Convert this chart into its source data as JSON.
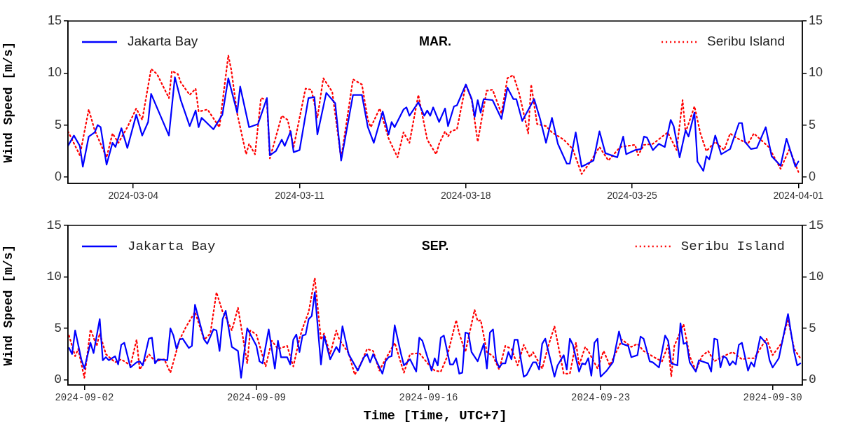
{
  "chart_data": [
    {
      "type": "line",
      "title": "MAR.",
      "ylabel": "Wind Speed [m/s]",
      "legend": "top",
      "grid": false,
      "marker": "none",
      "xlim": [
        "2024-03-01T06:00",
        "2024-04-01T04:00"
      ],
      "xticks": [
        "2024-03-04",
        "2024-03-11",
        "2024-03-18",
        "2024-03-25",
        "2024-04-01"
      ],
      "ylim": [
        -0.6,
        15
      ],
      "yticks": [
        0,
        5,
        10,
        15
      ],
      "y2lim": [
        -0.6,
        15
      ],
      "y2ticks": [
        0,
        5,
        10,
        15
      ],
      "series": [
        {
          "name": "Jakarta Bay",
          "color": "#0000ff",
          "line_style": "solid",
          "x": [
            "2024-03-01T06:00",
            "2024-03-01T12:00",
            "2024-03-01T18:00",
            "2024-03-01T21:00",
            "2024-03-02T03:00",
            "2024-03-02T09:00",
            "2024-03-02T12:00",
            "2024-03-02T15:00",
            "2024-03-02T21:00",
            "2024-03-03T03:00",
            "2024-03-03T06:00",
            "2024-03-03T12:00",
            "2024-03-03T18:00",
            "2024-03-04T03:00",
            "2024-03-04T09:00",
            "2024-03-04T15:00",
            "2024-03-04T18:00",
            "2024-03-05T03:00",
            "2024-03-05T12:00",
            "2024-03-05T18:00",
            "2024-03-06T00:00",
            "2024-03-06T09:00",
            "2024-03-06T15:00",
            "2024-03-06T18:00",
            "2024-03-06T21:00",
            "2024-03-07T09:00",
            "2024-03-07T18:00",
            "2024-03-08T00:00",
            "2024-03-08T09:00",
            "2024-03-08T12:00",
            "2024-03-08T21:00",
            "2024-03-09T06:00",
            "2024-03-09T15:00",
            "2024-03-09T18:00",
            "2024-03-10T00:00",
            "2024-03-10T06:00",
            "2024-03-10T09:00",
            "2024-03-10T15:00",
            "2024-03-10T18:00",
            "2024-03-11T00:00",
            "2024-03-11T09:00",
            "2024-03-11T15:00",
            "2024-03-11T18:00",
            "2024-03-12T03:00",
            "2024-03-12T12:00",
            "2024-03-12T18:00",
            "2024-03-13T06:00",
            "2024-03-13T15:00",
            "2024-03-13T21:00",
            "2024-03-14T03:00",
            "2024-03-14T12:00",
            "2024-03-14T18:00",
            "2024-03-14T21:00",
            "2024-03-15T00:00",
            "2024-03-15T09:00",
            "2024-03-15T12:00",
            "2024-03-15T15:00",
            "2024-03-16T00:00",
            "2024-03-16T06:00",
            "2024-03-16T09:00",
            "2024-03-16T12:00",
            "2024-03-16T15:00",
            "2024-03-16T21:00",
            "2024-03-17T03:00",
            "2024-03-17T06:00",
            "2024-03-17T12:00",
            "2024-03-17T15:00",
            "2024-03-18T00:00",
            "2024-03-18T06:00",
            "2024-03-18T09:00",
            "2024-03-18T12:00",
            "2024-03-18T15:00",
            "2024-03-18T18:00",
            "2024-03-19T03:00",
            "2024-03-19T12:00",
            "2024-03-19T18:00",
            "2024-03-20T00:00",
            "2024-03-20T03:00",
            "2024-03-20T09:00",
            "2024-03-20T21:00",
            "2024-03-21T03:00",
            "2024-03-21T09:00",
            "2024-03-21T15:00",
            "2024-03-21T21:00",
            "2024-03-22T06:00",
            "2024-03-22T09:00",
            "2024-03-22T15:00",
            "2024-03-22T21:00",
            "2024-03-23T09:00",
            "2024-03-23T15:00",
            "2024-03-23T21:00",
            "2024-03-24T09:00",
            "2024-03-24T15:00",
            "2024-03-24T18:00",
            "2024-03-25T03:00",
            "2024-03-25T09:00",
            "2024-03-25T12:00",
            "2024-03-25T15:00",
            "2024-03-25T21:00",
            "2024-03-26T03:00",
            "2024-03-26T09:00",
            "2024-03-26T15:00",
            "2024-03-26T18:00",
            "2024-03-27T00:00",
            "2024-03-27T06:00",
            "2024-03-27T09:00",
            "2024-03-27T15:00",
            "2024-03-27T18:00",
            "2024-03-28T00:00",
            "2024-03-28T03:00",
            "2024-03-28T06:00",
            "2024-03-28T12:00",
            "2024-03-28T18:00",
            "2024-03-29T03:00",
            "2024-03-29T12:00",
            "2024-03-29T15:00",
            "2024-03-29T18:00",
            "2024-03-30T00:00",
            "2024-03-30T06:00",
            "2024-03-30T15:00",
            "2024-03-30T21:00",
            "2024-03-31T06:00",
            "2024-03-31T12:00",
            "2024-03-31T21:00",
            "2024-04-01T00:00"
          ],
          "values": [
            3.0,
            4.0,
            3.0,
            1.0,
            3.9,
            4.3,
            5.0,
            4.8,
            1.2,
            3.3,
            2.9,
            4.7,
            2.8,
            6.0,
            4.0,
            5.3,
            8.0,
            6.0,
            4.0,
            9.6,
            7.4,
            4.9,
            6.4,
            4.8,
            5.7,
            4.6,
            6.0,
            9.5,
            6.2,
            8.7,
            4.8,
            5.1,
            7.6,
            2.1,
            2.5,
            3.6,
            3.0,
            4.4,
            2.4,
            2.6,
            7.6,
            7.7,
            4.1,
            8.1,
            7.1,
            1.6,
            7.9,
            7.9,
            4.8,
            3.3,
            6.3,
            4.1,
            5.3,
            4.8,
            6.5,
            6.7,
            5.9,
            7.2,
            5.9,
            6.4,
            5.9,
            6.7,
            5.3,
            6.6,
            4.9,
            6.8,
            6.9,
            8.9,
            7.5,
            5.8,
            7.4,
            6.2,
            7.5,
            7.4,
            5.6,
            8.6,
            7.5,
            7.5,
            5.4,
            7.5,
            5.6,
            3.3,
            5.7,
            3.2,
            1.3,
            1.3,
            4.3,
            1.0,
            1.6,
            4.4,
            2.3,
            1.9,
            3.9,
            2.2,
            2.6,
            2.7,
            3.9,
            3.8,
            2.6,
            3.2,
            2.9,
            5.5,
            4.9,
            1.9,
            4.5,
            3.9,
            6.2,
            1.5,
            0.6,
            2.0,
            1.7,
            4.0,
            2.2,
            2.7,
            5.2,
            5.2,
            3.4,
            2.7,
            2.8,
            4.8,
            2.0,
            1.1,
            3.7,
            1.0,
            1.5
          ]
        },
        {
          "name": "Seribu Island",
          "color": "#ff0000",
          "line_style": "dotted",
          "x": [
            "2024-03-01T06:00",
            "2024-03-01T18:00",
            "2024-03-02T03:00",
            "2024-03-02T09:00",
            "2024-03-02T21:00",
            "2024-03-03T03:00",
            "2024-03-03T09:00",
            "2024-03-03T18:00",
            "2024-03-04T03:00",
            "2024-03-04T09:00",
            "2024-03-04T18:00",
            "2024-03-05T00:00",
            "2024-03-05T12:00",
            "2024-03-05T15:00",
            "2024-03-05T21:00",
            "2024-03-06T00:00",
            "2024-03-06T09:00",
            "2024-03-06T15:00",
            "2024-03-06T18:00",
            "2024-03-07T03:00",
            "2024-03-07T15:00",
            "2024-03-08T00:00",
            "2024-03-08T03:00",
            "2024-03-08T09:00",
            "2024-03-08T18:00",
            "2024-03-08T21:00",
            "2024-03-09T03:00",
            "2024-03-09T09:00",
            "2024-03-09T15:00",
            "2024-03-09T18:00",
            "2024-03-10T06:00",
            "2024-03-10T12:00",
            "2024-03-10T18:00",
            "2024-03-11T06:00",
            "2024-03-11T12:00",
            "2024-03-11T18:00",
            "2024-03-12T00:00",
            "2024-03-12T09:00",
            "2024-03-12T18:00",
            "2024-03-13T06:00",
            "2024-03-13T15:00",
            "2024-03-13T21:00",
            "2024-03-14T00:00",
            "2024-03-14T09:00",
            "2024-03-14T18:00",
            "2024-03-15T03:00",
            "2024-03-15T09:00",
            "2024-03-15T15:00",
            "2024-03-16T00:00",
            "2024-03-16T09:00",
            "2024-03-16T18:00",
            "2024-03-16T21:00",
            "2024-03-17T03:00",
            "2024-03-17T06:00",
            "2024-03-17T09:00",
            "2024-03-17T15:00",
            "2024-03-18T00:00",
            "2024-03-18T06:00",
            "2024-03-18T12:00",
            "2024-03-18T21:00",
            "2024-03-19T03:00",
            "2024-03-19T12:00",
            "2024-03-19T18:00",
            "2024-03-20T00:00",
            "2024-03-20T06:00",
            "2024-03-20T15:00",
            "2024-03-20T18:00",
            "2024-03-21T00:00",
            "2024-03-21T09:00",
            "2024-03-21T15:00",
            "2024-03-22T03:00",
            "2024-03-22T12:00",
            "2024-03-22T21:00",
            "2024-03-23T06:00",
            "2024-03-23T15:00",
            "2024-03-24T00:00",
            "2024-03-24T12:00",
            "2024-03-25T03:00",
            "2024-03-25T06:00",
            "2024-03-25T12:00",
            "2024-03-25T21:00",
            "2024-03-26T12:00",
            "2024-03-26T21:00",
            "2024-03-27T03:00",
            "2024-03-27T06:00",
            "2024-03-27T15:00",
            "2024-03-27T21:00",
            "2024-03-28T03:00",
            "2024-03-28T12:00",
            "2024-03-28T21:00",
            "2024-03-29T03:00",
            "2024-03-29T09:00",
            "2024-03-29T21:00",
            "2024-03-30T03:00",
            "2024-03-30T18:00",
            "2024-03-31T06:00",
            "2024-03-31T15:00",
            "2024-04-01T00:00"
          ],
          "values": [
            4.4,
            2.1,
            6.5,
            4.5,
            1.9,
            4.2,
            3.3,
            4.8,
            6.6,
            5.5,
            10.4,
            9.9,
            7.6,
            10.2,
            9.9,
            9.1,
            7.9,
            8.5,
            6.3,
            6.5,
            4.8,
            11.7,
            10.3,
            6.1,
            2.2,
            3.2,
            2.2,
            7.6,
            7.4,
            1.8,
            5.9,
            5.5,
            2.9,
            8.5,
            8.4,
            5.7,
            9.5,
            8.2,
            1.8,
            9.4,
            8.9,
            5.5,
            4.8,
            6.6,
            3.7,
            1.9,
            4.3,
            3.3,
            7.9,
            3.6,
            2.2,
            3.2,
            4.4,
            3.9,
            4.4,
            4.6,
            8.9,
            7.4,
            3.4,
            8.3,
            8.4,
            6.1,
            9.5,
            9.8,
            8.0,
            4.2,
            8.9,
            5.1,
            4.9,
            4.3,
            3.6,
            2.7,
            0.3,
            1.5,
            2.9,
            1.6,
            2.9,
            3.1,
            2.1,
            3.1,
            3.2,
            4.3,
            2.6,
            7.4,
            4.3,
            6.8,
            4.2,
            2.5,
            3.4,
            2.6,
            4.2,
            3.8,
            3.2,
            4.2,
            2.9,
            0.8,
            2.7,
            0.5
          ]
        }
      ]
    },
    {
      "type": "line",
      "title": "SEP.",
      "ylabel": "Wind Speed [m/s]",
      "xlabel": "Time [Time, UTC+7]",
      "legend": "top",
      "grid": false,
      "marker": "none",
      "xlim": [
        "2024-09-01T08:00",
        "2024-10-01T05:00"
      ],
      "xticks": [
        "2024-09-02",
        "2024-09-09",
        "2024-09-16",
        "2024-09-23",
        "2024-09-30"
      ],
      "ylim": [
        -0.5,
        15
      ],
      "yticks": [
        0,
        5,
        10,
        15
      ],
      "y2lim": [
        -0.5,
        15
      ],
      "y2ticks": [
        0,
        5,
        10,
        15
      ],
      "series": [
        {
          "name": "Jakarta Bay",
          "color": "#0000ff",
          "line_style": "solid",
          "x": [
            "2024-09-01T09:00",
            "2024-09-01T12:00",
            "2024-09-01T15:00",
            "2024-09-01T21:00",
            "2024-09-02T00:00",
            "2024-09-02T06:00",
            "2024-09-02T09:00",
            "2024-09-02T15:00",
            "2024-09-02T18:00",
            "2024-09-02T21:00",
            "2024-09-03T00:00",
            "2024-09-03T06:00",
            "2024-09-03T09:00",
            "2024-09-03T12:00",
            "2024-09-03T15:00",
            "2024-09-03T21:00",
            "2024-09-04T03:00",
            "2024-09-04T06:00",
            "2024-09-04T09:00",
            "2024-09-04T15:00",
            "2024-09-04T18:00",
            "2024-09-04T21:00",
            "2024-09-05T00:00",
            "2024-09-05T09:00",
            "2024-09-05T12:00",
            "2024-09-05T15:00",
            "2024-09-05T18:00",
            "2024-09-05T21:00",
            "2024-09-06T00:00",
            "2024-09-06T06:00",
            "2024-09-06T09:00",
            "2024-09-06T12:00",
            "2024-09-06T21:00",
            "2024-09-07T00:00",
            "2024-09-07T06:00",
            "2024-09-07T09:00",
            "2024-09-07T12:00",
            "2024-09-07T15:00",
            "2024-09-07T18:00",
            "2024-09-08T00:00",
            "2024-09-08T03:00",
            "2024-09-08T06:00",
            "2024-09-08T09:00",
            "2024-09-08T15:00",
            "2024-09-09T00:00",
            "2024-09-09T03:00",
            "2024-09-09T06:00",
            "2024-09-09T12:00",
            "2024-09-09T18:00",
            "2024-09-09T21:00",
            "2024-09-10T00:00",
            "2024-09-10T06:00",
            "2024-09-10T09:00",
            "2024-09-10T12:00",
            "2024-09-10T15:00",
            "2024-09-10T18:00",
            "2024-09-10T21:00",
            "2024-09-11T00:00",
            "2024-09-11T03:00",
            "2024-09-11T06:00",
            "2024-09-11T09:00",
            "2024-09-11T15:00",
            "2024-09-11T18:00",
            "2024-09-12T00:00",
            "2024-09-12T06:00",
            "2024-09-12T09:00",
            "2024-09-12T12:00",
            "2024-09-12T18:00",
            "2024-09-13T03:00",
            "2024-09-13T09:00",
            "2024-09-13T12:00",
            "2024-09-13T15:00",
            "2024-09-13T18:00",
            "2024-09-14T03:00",
            "2024-09-14T06:00",
            "2024-09-14T09:00",
            "2024-09-14T12:00",
            "2024-09-14T15:00",
            "2024-09-14T21:00",
            "2024-09-15T00:00",
            "2024-09-15T06:00",
            "2024-09-15T12:00",
            "2024-09-15T15:00",
            "2024-09-15T18:00",
            "2024-09-16T03:00",
            "2024-09-16T06:00",
            "2024-09-16T09:00",
            "2024-09-16T12:00",
            "2024-09-16T15:00",
            "2024-09-16T21:00",
            "2024-09-17T00:00",
            "2024-09-17T03:00",
            "2024-09-17T06:00",
            "2024-09-17T09:00",
            "2024-09-17T12:00",
            "2024-09-17T15:00",
            "2024-09-17T18:00",
            "2024-09-18T00:00",
            "2024-09-18T06:00",
            "2024-09-18T09:00",
            "2024-09-18T12:00",
            "2024-09-18T15:00",
            "2024-09-18T18:00",
            "2024-09-18T21:00",
            "2024-09-19T00:00",
            "2024-09-19T03:00",
            "2024-09-19T06:00",
            "2024-09-19T09:00",
            "2024-09-19T12:00",
            "2024-09-19T15:00",
            "2024-09-19T21:00",
            "2024-09-20T00:00",
            "2024-09-20T06:00",
            "2024-09-20T09:00",
            "2024-09-20T12:00",
            "2024-09-20T15:00",
            "2024-09-20T18:00",
            "2024-09-21T03:00",
            "2024-09-21T06:00",
            "2024-09-21T12:00",
            "2024-09-21T15:00",
            "2024-09-21T18:00",
            "2024-09-21T21:00",
            "2024-09-22T03:00",
            "2024-09-22T06:00",
            "2024-09-22T09:00",
            "2024-09-22T12:00",
            "2024-09-22T15:00",
            "2024-09-22T18:00",
            "2024-09-22T21:00",
            "2024-09-23T00:00",
            "2024-09-23T06:00",
            "2024-09-23T12:00",
            "2024-09-23T18:00",
            "2024-09-23T21:00",
            "2024-09-24T03:00",
            "2024-09-24T06:00",
            "2024-09-24T12:00",
            "2024-09-24T15:00",
            "2024-09-24T18:00",
            "2024-09-25T00:00",
            "2024-09-25T03:00",
            "2024-09-25T09:00",
            "2024-09-25T15:00",
            "2024-09-25T18:00",
            "2024-09-25T21:00",
            "2024-09-26T00:00",
            "2024-09-26T03:00",
            "2024-09-26T06:00",
            "2024-09-26T09:00",
            "2024-09-26T12:00",
            "2024-09-26T15:00",
            "2024-09-26T21:00",
            "2024-09-27T00:00",
            "2024-09-27T09:00",
            "2024-09-27T12:00",
            "2024-09-27T15:00",
            "2024-09-27T18:00",
            "2024-09-27T21:00",
            "2024-09-28T00:00",
            "2024-09-28T03:00",
            "2024-09-28T06:00",
            "2024-09-28T09:00",
            "2024-09-28T12:00",
            "2024-09-28T15:00",
            "2024-09-28T18:00",
            "2024-09-29T00:00",
            "2024-09-29T03:00",
            "2024-09-29T06:00",
            "2024-09-29T12:00",
            "2024-09-29T18:00",
            "2024-09-29T21:00",
            "2024-09-30T00:00",
            "2024-09-30T06:00",
            "2024-09-30T15:00",
            "2024-09-30T21:00",
            "2024-10-01T00:00",
            "2024-10-01T03:00"
          ],
          "values": [
            3.1,
            2.5,
            4.8,
            2.0,
            1.1,
            3.6,
            2.6,
            5.9,
            1.9,
            2.2,
            1.9,
            2.3,
            1.5,
            3.4,
            3.6,
            1.2,
            1.7,
            1.8,
            1.4,
            4.0,
            4.1,
            1.6,
            2.0,
            1.9,
            5.0,
            4.3,
            3.0,
            3.9,
            4.0,
            3.1,
            3.3,
            7.3,
            3.9,
            3.5,
            4.9,
            4.8,
            2.8,
            5.9,
            6.7,
            3.2,
            3.0,
            2.8,
            0.2,
            5.0,
            3.3,
            1.8,
            1.6,
            4.9,
            1.1,
            3.8,
            2.2,
            2.2,
            1.5,
            3.9,
            4.4,
            2.7,
            4.3,
            4.4,
            5.9,
            6.2,
            8.5,
            1.5,
            4.3,
            2.0,
            3.2,
            2.7,
            5.2,
            2.5,
            0.9,
            2.2,
            2.5,
            1.7,
            2.5,
            0.6,
            1.8,
            2.2,
            2.3,
            5.3,
            2.6,
            1.4,
            2.0,
            0.8,
            4.1,
            3.8,
            0.9,
            2.1,
            1.4,
            4.1,
            4.3,
            1.5,
            1.5,
            2.1,
            0.6,
            0.7,
            4.6,
            4.5,
            2.7,
            1.8,
            3.5,
            1.1,
            4.6,
            4.9,
            1.9,
            1.2,
            1.6,
            1.6,
            2.7,
            2.0,
            3.9,
            3.9,
            0.3,
            0.5,
            1.7,
            1.7,
            1.0,
            3.5,
            4.0,
            0.3,
            1.4,
            2.4,
            1.0,
            4.0,
            3.4,
            0.8,
            1.6,
            1.5,
            2.1,
            0.4,
            3.6,
            4.0,
            0.3,
            0.9,
            1.7,
            4.7,
            3.5,
            3.3,
            2.2,
            2.4,
            4.2,
            4.0,
            1.8,
            1.7,
            1.2,
            4.3,
            3.8,
            1.6,
            1.5,
            1.4,
            5.5,
            3.5,
            3.6,
            1.7,
            0.8,
            1.9,
            1.6,
            0.8,
            4.0,
            3.9,
            1.2,
            2.3,
            2.1,
            1.4,
            1.8,
            1.5,
            3.4,
            3.6,
            0.9,
            1.7,
            1.3,
            4.2,
            3.5,
            1.9,
            1.2,
            2.1,
            6.4,
            2.7,
            1.4,
            1.6
          ]
        },
        {
          "name": "Seribu Island",
          "color": "#ff0000",
          "line_style": "dotted",
          "x": [
            "2024-09-01T09:00",
            "2024-09-01T15:00",
            "2024-09-01T18:00",
            "2024-09-02T00:00",
            "2024-09-02T06:00",
            "2024-09-02T12:00",
            "2024-09-02T15:00",
            "2024-09-02T21:00",
            "2024-09-03T06:00",
            "2024-09-03T12:00",
            "2024-09-03T21:00",
            "2024-09-04T03:00",
            "2024-09-04T06:00",
            "2024-09-04T15:00",
            "2024-09-04T21:00",
            "2024-09-05T06:00",
            "2024-09-05T12:00",
            "2024-09-05T21:00",
            "2024-09-06T03:00",
            "2024-09-06T12:00",
            "2024-09-06T21:00",
            "2024-09-07T03:00",
            "2024-09-07T09:00",
            "2024-09-07T15:00",
            "2024-09-07T18:00",
            "2024-09-08T00:00",
            "2024-09-08T06:00",
            "2024-09-08T15:00",
            "2024-09-08T18:00",
            "2024-09-09T00:00",
            "2024-09-09T09:00",
            "2024-09-09T15:00",
            "2024-09-09T21:00",
            "2024-09-10T06:00",
            "2024-09-10T12:00",
            "2024-09-10T18:00",
            "2024-09-10T21:00",
            "2024-09-11T03:00",
            "2024-09-11T09:00",
            "2024-09-11T15:00",
            "2024-09-11T18:00",
            "2024-09-12T00:00",
            "2024-09-12T06:00",
            "2024-09-12T09:00",
            "2024-09-12T18:00",
            "2024-09-13T00:00",
            "2024-09-13T06:00",
            "2024-09-13T12:00",
            "2024-09-13T18:00",
            "2024-09-14T00:00",
            "2024-09-14T06:00",
            "2024-09-14T15:00",
            "2024-09-15T00:00",
            "2024-09-15T06:00",
            "2024-09-15T15:00",
            "2024-09-16T00:00",
            "2024-09-16T06:00",
            "2024-09-16T12:00",
            "2024-09-16T18:00",
            "2024-09-17T03:00",
            "2024-09-17T06:00",
            "2024-09-17T12:00",
            "2024-09-17T21:00",
            "2024-09-18T00:00",
            "2024-09-18T03:00",
            "2024-09-18T09:00",
            "2024-09-18T15:00",
            "2024-09-18T21:00",
            "2024-09-19T03:00",
            "2024-09-19T09:00",
            "2024-09-19T15:00",
            "2024-09-19T21:00",
            "2024-09-20T03:00",
            "2024-09-20T06:00",
            "2024-09-20T15:00",
            "2024-09-20T21:00",
            "2024-09-21T03:00",
            "2024-09-21T12:00",
            "2024-09-21T18:00",
            "2024-09-22T00:00",
            "2024-09-22T03:00",
            "2024-09-22T09:00",
            "2024-09-22T12:00",
            "2024-09-22T21:00",
            "2024-09-23T03:00",
            "2024-09-23T09:00",
            "2024-09-23T21:00",
            "2024-09-24T06:00",
            "2024-09-24T12:00",
            "2024-09-24T18:00",
            "2024-09-25T06:00",
            "2024-09-25T12:00",
            "2024-09-25T18:00",
            "2024-09-25T21:00",
            "2024-09-26T00:00",
            "2024-09-26T09:00",
            "2024-09-26T15:00",
            "2024-09-26T21:00",
            "2024-09-27T03:00",
            "2024-09-27T09:00",
            "2024-09-27T15:00",
            "2024-09-28T00:00",
            "2024-09-28T09:00",
            "2024-09-28T18:00",
            "2024-09-29T00:00",
            "2024-09-29T06:00",
            "2024-09-29T18:00",
            "2024-09-30T00:00",
            "2024-09-30T09:00",
            "2024-09-30T15:00",
            "2024-09-30T21:00",
            "2024-10-01T03:00"
          ],
          "values": [
            4.3,
            2.3,
            3.0,
            0.2,
            4.9,
            3.3,
            4.5,
            2.5,
            1.7,
            2.0,
            1.4,
            3.9,
            1.0,
            2.5,
            1.8,
            2.0,
            0.7,
            3.9,
            5.1,
            6.6,
            3.9,
            4.5,
            8.5,
            6.6,
            6.1,
            4.8,
            7.0,
            1.6,
            4.8,
            4.4,
            1.3,
            3.8,
            3.0,
            3.3,
            1.3,
            4.0,
            5.0,
            6.6,
            9.9,
            3.9,
            4.5,
            2.5,
            4.8,
            3.9,
            2.6,
            0.5,
            1.6,
            3.0,
            2.8,
            0.9,
            2.0,
            3.6,
            0.7,
            2.5,
            2.6,
            1.5,
            0.9,
            0.8,
            2.2,
            5.8,
            4.5,
            2.7,
            6.8,
            5.7,
            5.8,
            2.7,
            2.3,
            1.0,
            3.3,
            3.0,
            1.4,
            3.4,
            2.2,
            2.7,
            1.1,
            3.3,
            5.2,
            0.6,
            0.6,
            3.6,
            1.4,
            3.2,
            2.8,
            1.1,
            2.8,
            1.4,
            3.9,
            3.2,
            3.5,
            2.8,
            2.1,
            1.8,
            3.4,
            0.3,
            3.3,
            5.4,
            2.3,
            0.9,
            2.3,
            2.8,
            1.8,
            2.3,
            2.7,
            2.0,
            2.1,
            2.1,
            4.0,
            2.4,
            3.6,
            5.9,
            3.0,
            2.1
          ]
        }
      ]
    }
  ]
}
